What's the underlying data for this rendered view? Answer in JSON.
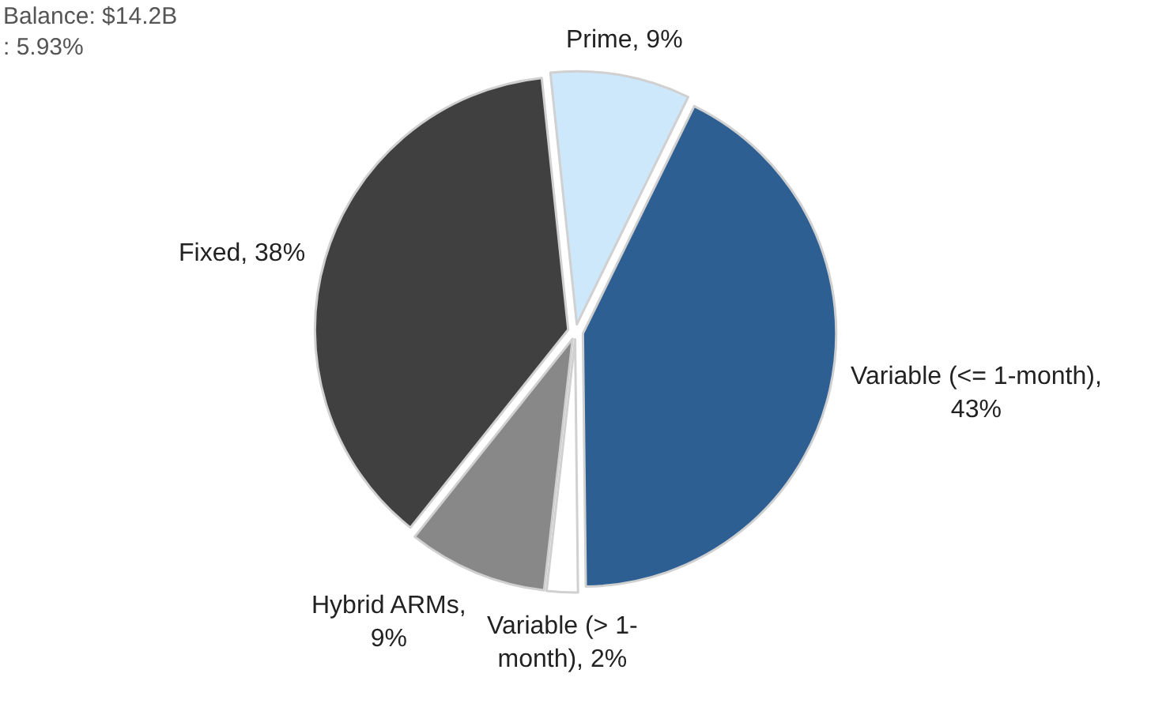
{
  "chart_data": {
    "type": "pie",
    "categories": [
      "Prime, 9%",
      "Variable (<= 1-month),\n43%",
      "Variable (> 1-\nmonth), 2%",
      "Hybrid ARMs,\n9%",
      "Fixed, 38%"
    ],
    "values": [
      9,
      43,
      2,
      9,
      38
    ],
    "colors": [
      "#cde8fb",
      "#2e5f93",
      "#ffffff",
      "#888888",
      "#404040"
    ],
    "annotations": [
      "Balance: $14.2B\n: 5.93%"
    ],
    "legend": false
  }
}
